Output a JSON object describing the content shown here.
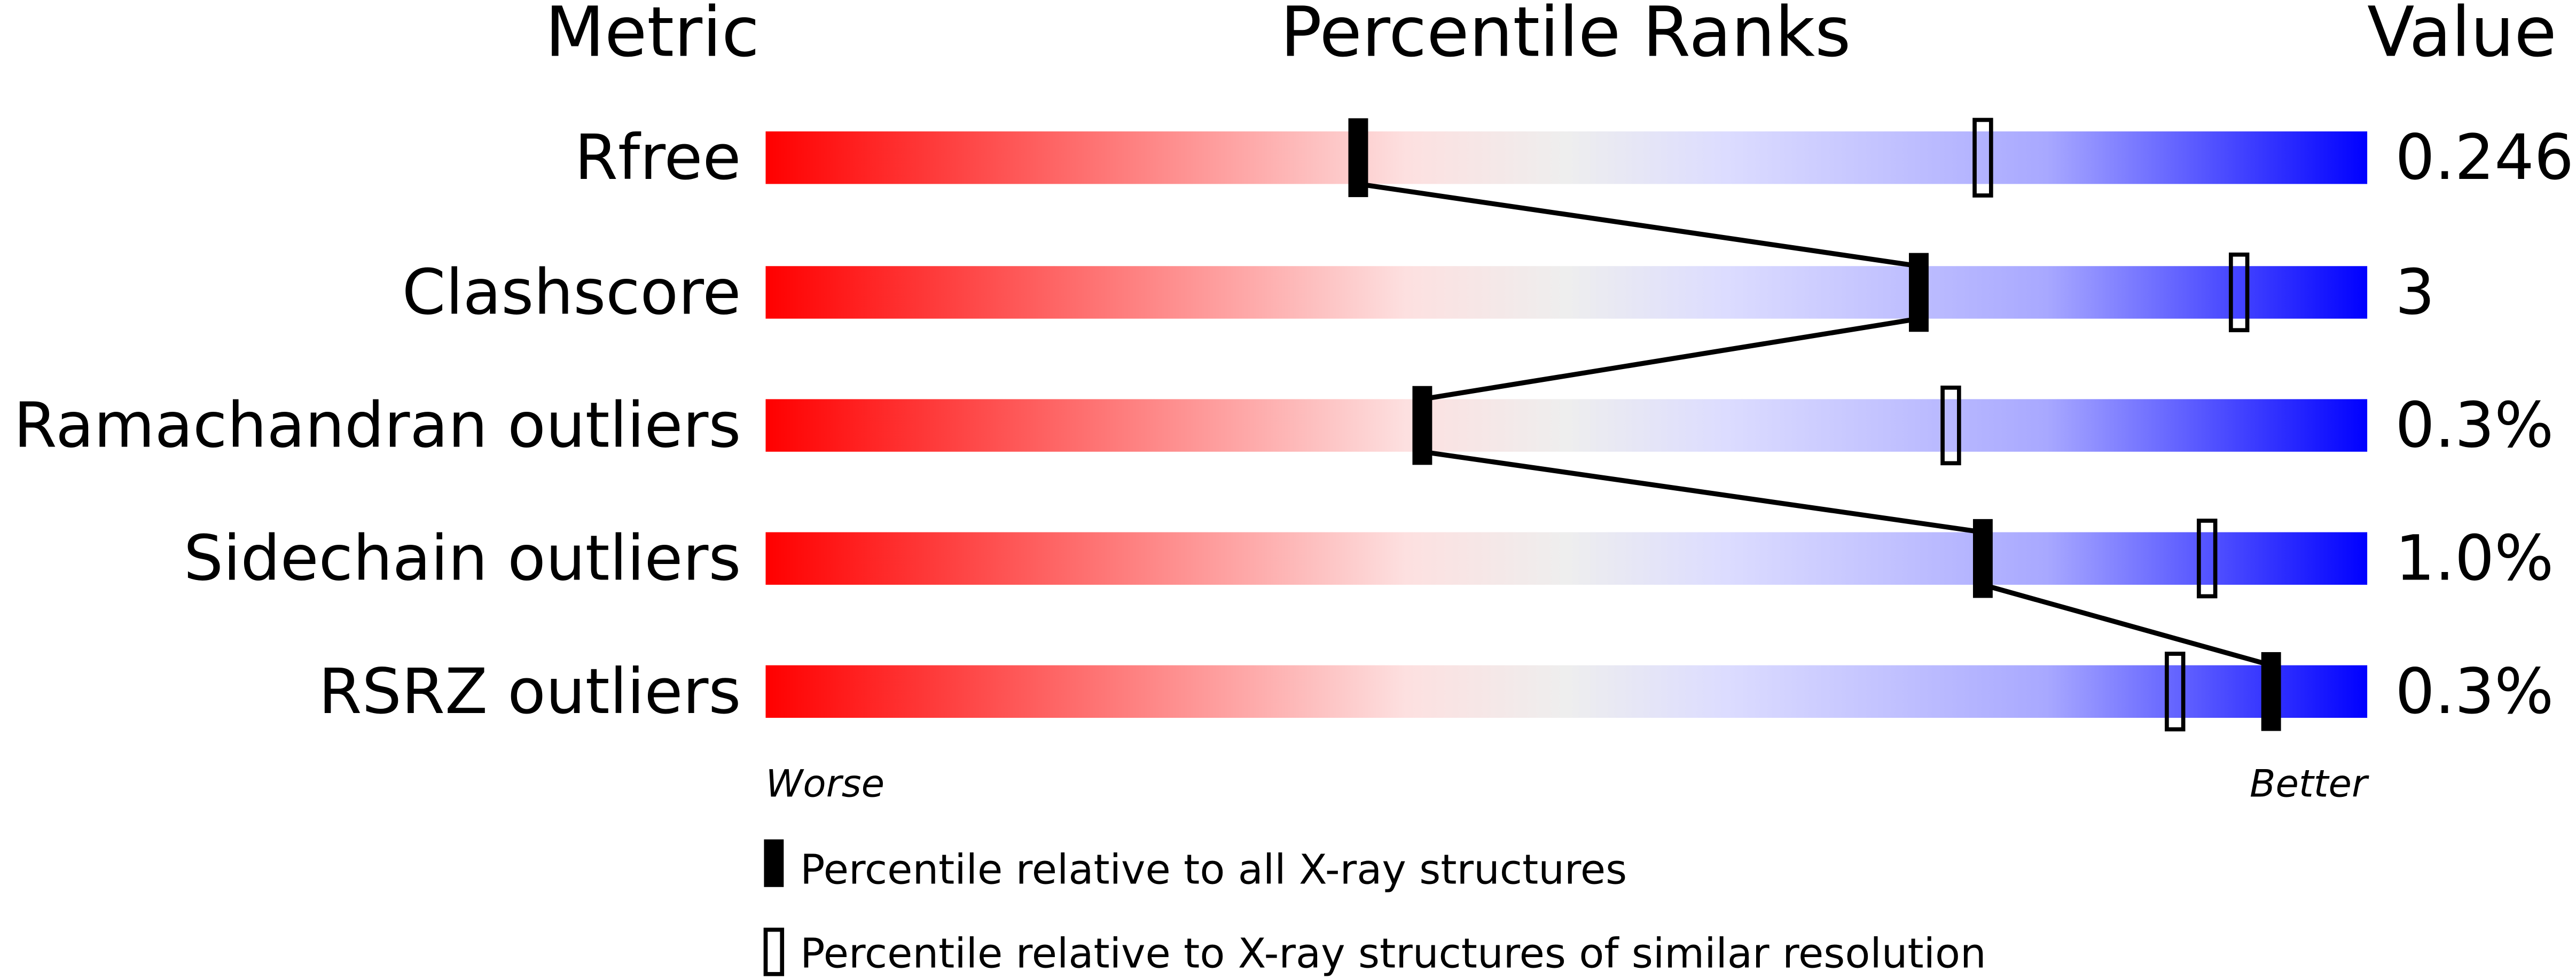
{
  "chart_data": {
    "type": "percentile-bar",
    "headers": {
      "metric": "Metric",
      "percentile": "Percentile Ranks",
      "value": "Value"
    },
    "axis": {
      "min": 0,
      "max": 100,
      "left_label": "Worse",
      "right_label": "Better"
    },
    "gradient_colors": [
      "#ff0000",
      "#fde0e0",
      "#eeeeee",
      "#dcdcff",
      "#0000ff"
    ],
    "rows": [
      {
        "metric": "Rfree",
        "value": "0.246",
        "percentile_all": 37,
        "percentile_similar": 76
      },
      {
        "metric": "Clashscore",
        "value": "3",
        "percentile_all": 72,
        "percentile_similar": 92
      },
      {
        "metric": "Ramachandran outliers",
        "value": "0.3%",
        "percentile_all": 41,
        "percentile_similar": 74
      },
      {
        "metric": "Sidechain outliers",
        "value": "1.0%",
        "percentile_all": 76,
        "percentile_similar": 90
      },
      {
        "metric": "RSRZ outliers",
        "value": "0.3%",
        "percentile_all": 94,
        "percentile_similar": 88
      }
    ],
    "legend": [
      {
        "marker": "filled",
        "label": "Percentile relative to all X-ray structures"
      },
      {
        "marker": "open",
        "label": "Percentile relative to X-ray structures of similar resolution"
      }
    ]
  }
}
